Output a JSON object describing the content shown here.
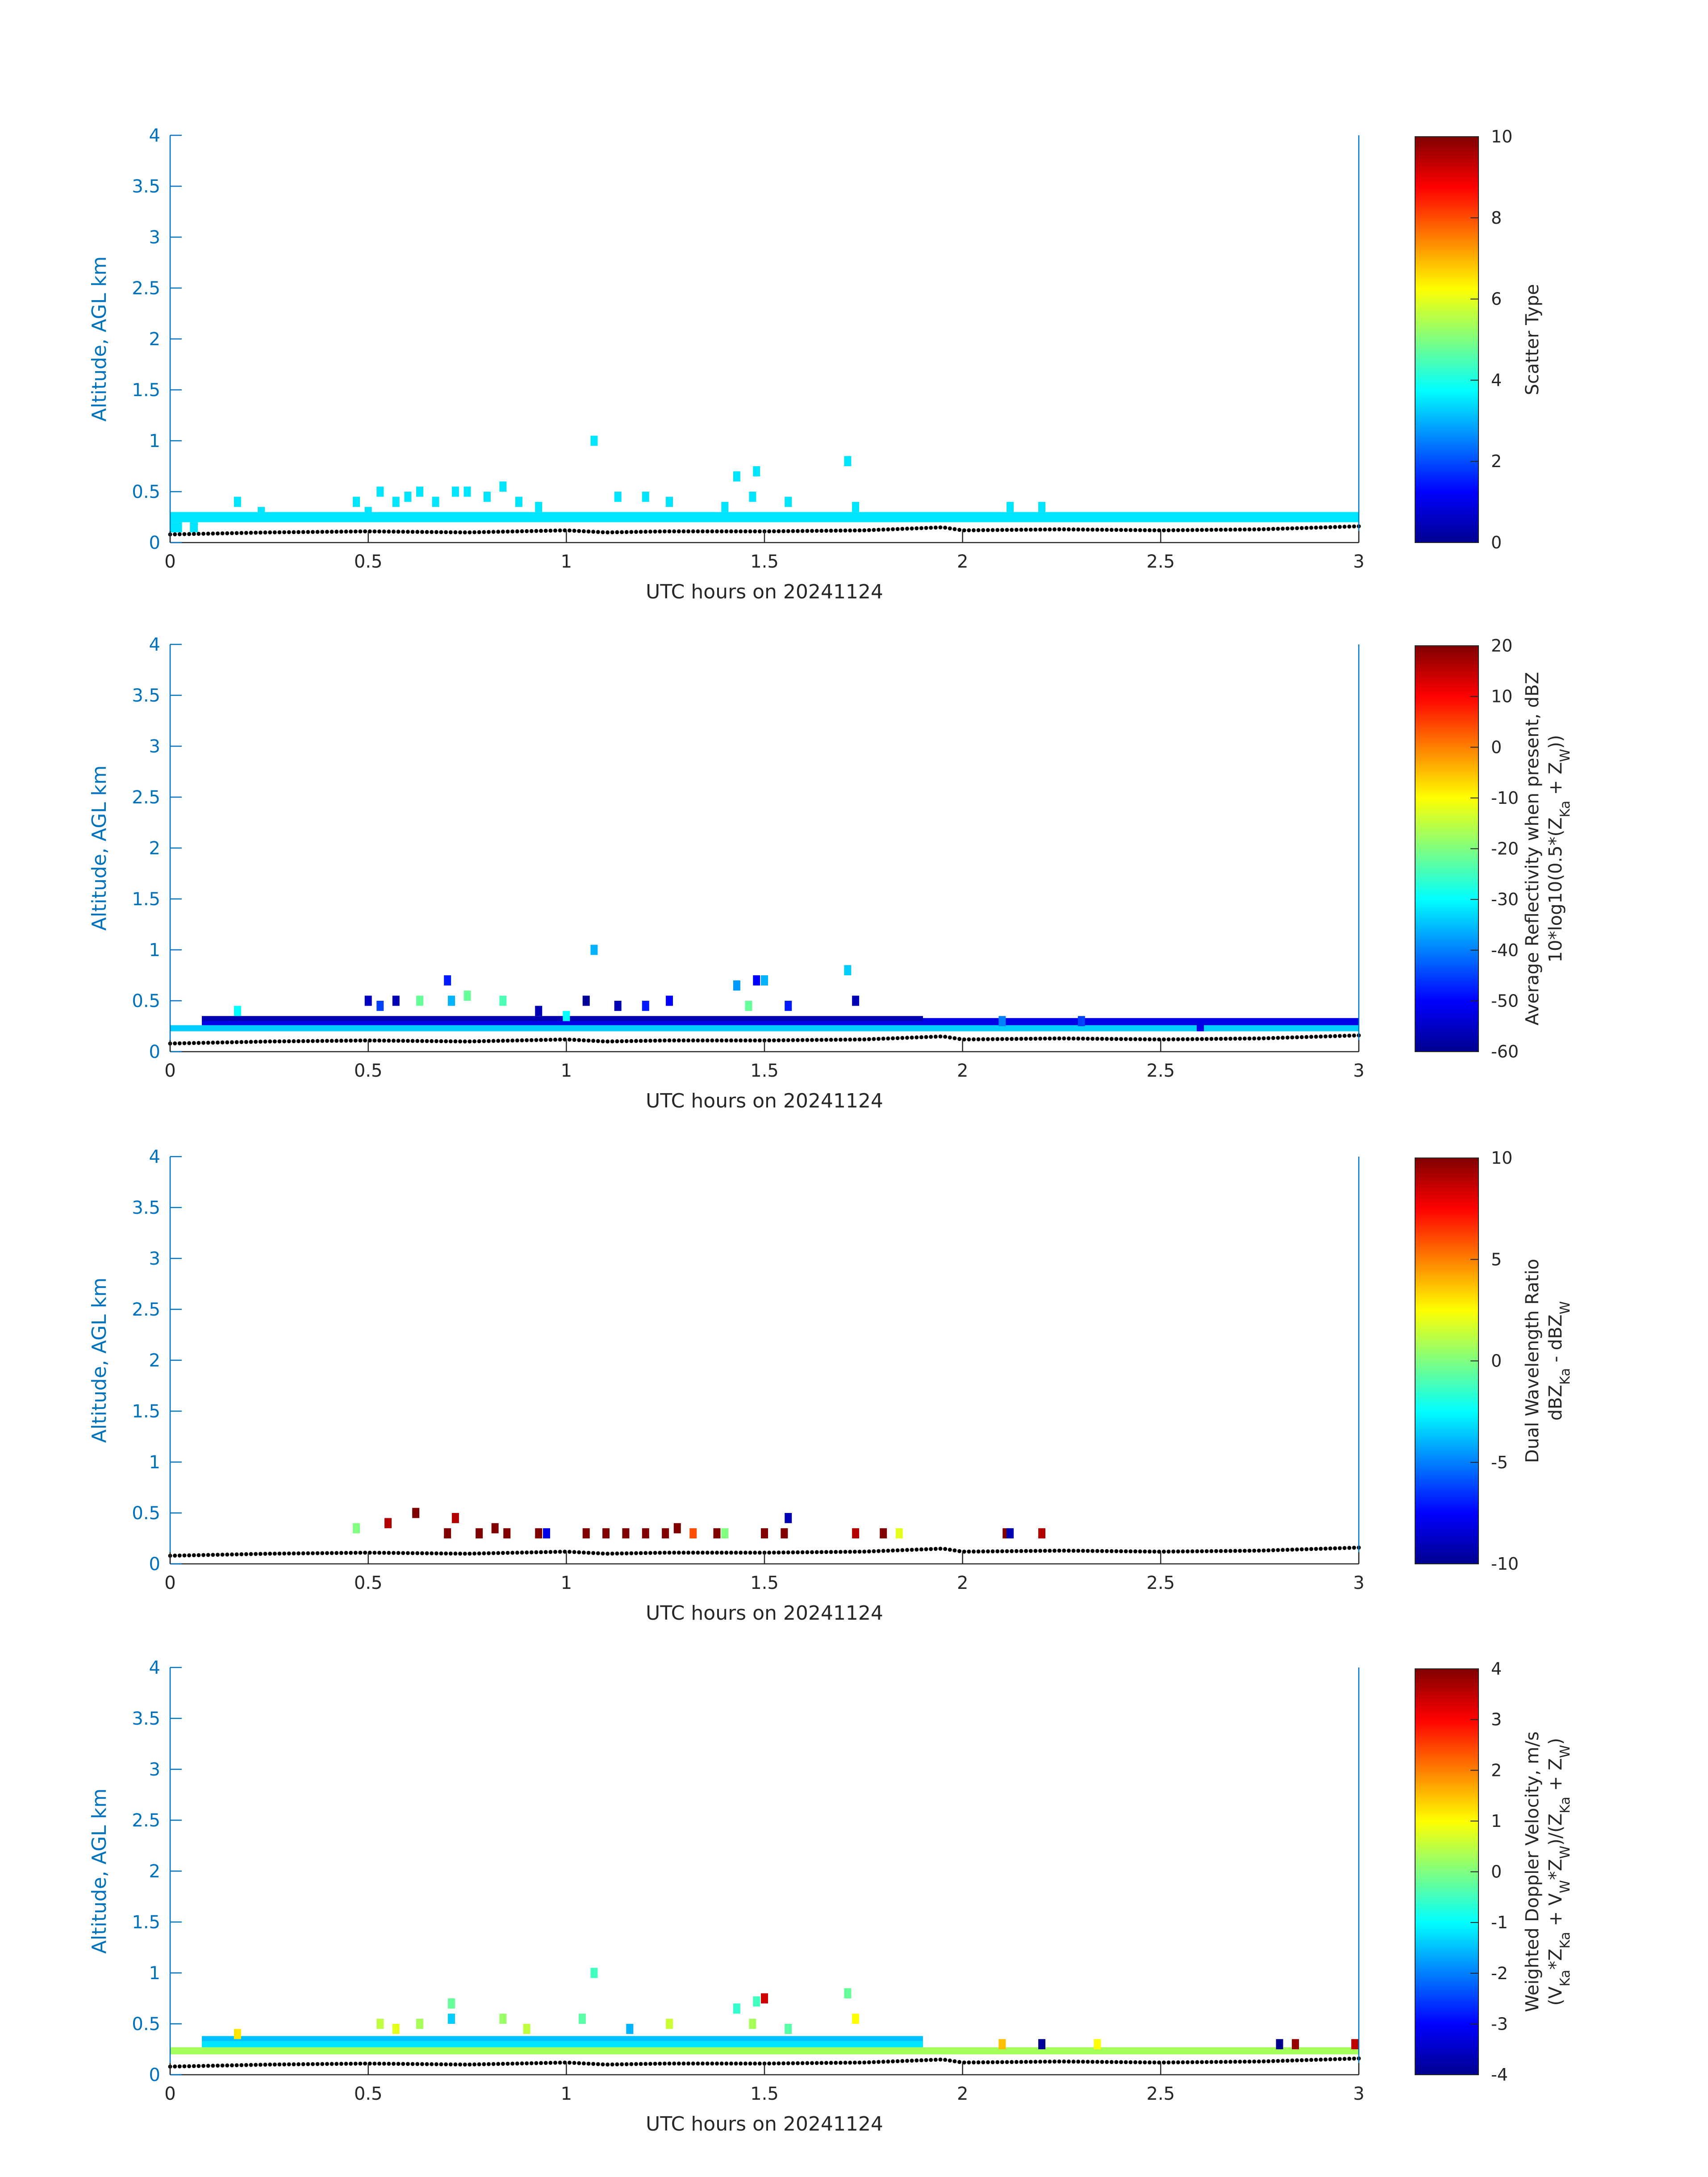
{
  "colors": {
    "axis_blue": "#0072bd",
    "frame_gray": "#262626",
    "cyan_fill": "#2ef8d2",
    "ground_dots": "#000000"
  },
  "chart_data": [
    {
      "type": "heatmap",
      "xlabel": "UTC hours on 20241124",
      "ylabel": "Altitude, AGL km",
      "xlim": [
        0,
        3
      ],
      "ylim": [
        0,
        4
      ],
      "xticks": [
        "0",
        "0.5",
        "1",
        "1.5",
        "2",
        "2.5",
        "3"
      ],
      "yticks": [
        "0",
        "0.5",
        "1",
        "1.5",
        "2",
        "2.5",
        "3",
        "3.5",
        "4"
      ],
      "colorbar": {
        "label_lines": [
          "Scatter Type"
        ],
        "clim": [
          0,
          10
        ],
        "ticks": [
          "0",
          "2",
          "4",
          "6",
          "8",
          "10"
        ]
      },
      "layers": [
        {
          "x0": 0.0,
          "x1": 3.0,
          "y0": 0.2,
          "y1": 0.3,
          "value": 3.5
        },
        {
          "x0": 0.0,
          "x1": 0.03,
          "y0": 0.1,
          "y1": 0.2,
          "value": 3.5
        },
        {
          "x0": 0.05,
          "x1": 0.07,
          "y0": 0.1,
          "y1": 0.2,
          "value": 3.5
        }
      ],
      "cells": [
        [
          0.17,
          0.4,
          3.5
        ],
        [
          0.23,
          0.3,
          3.5
        ],
        [
          0.47,
          0.4,
          3.5
        ],
        [
          0.5,
          0.3,
          3.5
        ],
        [
          0.53,
          0.5,
          3.5
        ],
        [
          0.57,
          0.4,
          3.5
        ],
        [
          0.6,
          0.45,
          3.5
        ],
        [
          0.63,
          0.5,
          3.5
        ],
        [
          0.67,
          0.4,
          3.5
        ],
        [
          0.72,
          0.5,
          3.5
        ],
        [
          0.75,
          0.5,
          3.5
        ],
        [
          0.8,
          0.45,
          3.5
        ],
        [
          0.84,
          0.55,
          3.5
        ],
        [
          0.88,
          0.4,
          3.5
        ],
        [
          0.93,
          0.35,
          3.5
        ],
        [
          1.07,
          1.0,
          3.5
        ],
        [
          1.13,
          0.45,
          3.5
        ],
        [
          1.2,
          0.45,
          3.5
        ],
        [
          1.26,
          0.4,
          3.5
        ],
        [
          1.4,
          0.35,
          3.5
        ],
        [
          1.43,
          0.65,
          3.5
        ],
        [
          1.47,
          0.45,
          3.5
        ],
        [
          1.48,
          0.7,
          3.5
        ],
        [
          1.56,
          0.4,
          3.5
        ],
        [
          1.71,
          0.8,
          3.5
        ],
        [
          1.73,
          0.35,
          3.5
        ],
        [
          2.12,
          0.35,
          3.5
        ],
        [
          2.2,
          0.35,
          3.5
        ]
      ],
      "ground": {
        "x": [
          0,
          0.25,
          0.5,
          0.75,
          1.0,
          1.1,
          1.25,
          1.5,
          1.75,
          1.95,
          2.0,
          2.25,
          2.5,
          2.75,
          3.0
        ],
        "y": [
          0.08,
          0.1,
          0.11,
          0.1,
          0.12,
          0.1,
          0.11,
          0.11,
          0.12,
          0.15,
          0.12,
          0.13,
          0.12,
          0.13,
          0.16
        ]
      }
    },
    {
      "type": "heatmap",
      "xlabel": "UTC hours on 20241124",
      "ylabel": "Altitude, AGL km",
      "xlim": [
        0,
        3
      ],
      "ylim": [
        0,
        4
      ],
      "xticks": [
        "0",
        "0.5",
        "1",
        "1.5",
        "2",
        "2.5",
        "3"
      ],
      "yticks": [
        "0",
        "0.5",
        "1",
        "1.5",
        "2",
        "2.5",
        "3",
        "3.5",
        "4"
      ],
      "colorbar": {
        "label_lines": [
          "Average Reflectivity when present, dBZ",
          "10*log10(0.5*(Z_Ka + Z_W))"
        ],
        "clim": [
          -60,
          20
        ],
        "ticks": [
          "-60",
          "-50",
          "-40",
          "-30",
          "-20",
          "-10",
          "0",
          "10",
          "20"
        ]
      },
      "layers": [
        {
          "x0": 0.0,
          "x1": 3.0,
          "y0": 0.2,
          "y1": 0.26,
          "value": -34
        },
        {
          "x0": 0.08,
          "x1": 3.0,
          "y0": 0.26,
          "y1": 0.33,
          "value": -52
        },
        {
          "x0": 0.08,
          "x1": 1.9,
          "y0": 0.3,
          "y1": 0.35,
          "value": -56
        }
      ],
      "cells": [
        [
          0.17,
          0.4,
          -30
        ],
        [
          0.5,
          0.5,
          -55
        ],
        [
          0.53,
          0.45,
          -45
        ],
        [
          0.57,
          0.5,
          -56
        ],
        [
          0.63,
          0.5,
          -22
        ],
        [
          0.7,
          0.7,
          -48
        ],
        [
          0.71,
          0.5,
          -36
        ],
        [
          0.75,
          0.55,
          -22
        ],
        [
          0.84,
          0.5,
          -24
        ],
        [
          0.93,
          0.4,
          -56
        ],
        [
          1.0,
          0.35,
          -30
        ],
        [
          1.05,
          0.5,
          -58
        ],
        [
          1.07,
          1.0,
          -36
        ],
        [
          1.13,
          0.45,
          -56
        ],
        [
          1.2,
          0.45,
          -48
        ],
        [
          1.26,
          0.5,
          -50
        ],
        [
          1.43,
          0.65,
          -38
        ],
        [
          1.46,
          0.45,
          -22
        ],
        [
          1.48,
          0.7,
          -50
        ],
        [
          1.5,
          0.7,
          -36
        ],
        [
          1.56,
          0.45,
          -48
        ],
        [
          1.71,
          0.8,
          -34
        ],
        [
          1.73,
          0.5,
          -56
        ],
        [
          2.1,
          0.3,
          -40
        ],
        [
          2.3,
          0.3,
          -45
        ],
        [
          2.6,
          0.25,
          -52
        ]
      ],
      "ground": {
        "x": [
          0,
          0.25,
          0.5,
          0.75,
          1.0,
          1.1,
          1.25,
          1.5,
          1.75,
          1.95,
          2.0,
          2.25,
          2.5,
          2.75,
          3.0
        ],
        "y": [
          0.08,
          0.1,
          0.11,
          0.1,
          0.12,
          0.1,
          0.11,
          0.11,
          0.12,
          0.15,
          0.12,
          0.13,
          0.12,
          0.13,
          0.16
        ]
      }
    },
    {
      "type": "heatmap",
      "xlabel": "UTC hours on 20241124",
      "ylabel": "Altitude, AGL km",
      "xlim": [
        0,
        3
      ],
      "ylim": [
        0,
        4
      ],
      "xticks": [
        "0",
        "0.5",
        "1",
        "1.5",
        "2",
        "2.5",
        "3"
      ],
      "yticks": [
        "0",
        "0.5",
        "1",
        "1.5",
        "2",
        "2.5",
        "3",
        "3.5",
        "4"
      ],
      "colorbar": {
        "label_lines": [
          "Dual Wavelength Ratio",
          "dBZ_Ka - dBZ_W"
        ],
        "clim": [
          -10,
          10
        ],
        "ticks": [
          "-10",
          "-5",
          "0",
          "5",
          "10"
        ]
      },
      "layers": [],
      "cells": [
        [
          0.47,
          0.35,
          0
        ],
        [
          0.55,
          0.4,
          9
        ],
        [
          0.62,
          0.5,
          10
        ],
        [
          0.72,
          0.45,
          9
        ],
        [
          0.7,
          0.3,
          10
        ],
        [
          0.78,
          0.3,
          10
        ],
        [
          0.82,
          0.35,
          10
        ],
        [
          0.85,
          0.3,
          10
        ],
        [
          0.93,
          0.3,
          10
        ],
        [
          0.95,
          0.3,
          -8
        ],
        [
          1.05,
          0.3,
          10
        ],
        [
          1.1,
          0.3,
          10
        ],
        [
          1.15,
          0.3,
          10
        ],
        [
          1.2,
          0.3,
          10
        ],
        [
          1.25,
          0.3,
          10
        ],
        [
          1.28,
          0.35,
          10
        ],
        [
          1.32,
          0.3,
          6
        ],
        [
          1.38,
          0.3,
          10
        ],
        [
          1.4,
          0.3,
          0
        ],
        [
          1.5,
          0.3,
          10
        ],
        [
          1.55,
          0.3,
          10
        ],
        [
          1.56,
          0.45,
          -9
        ],
        [
          1.73,
          0.3,
          9
        ],
        [
          1.8,
          0.3,
          10
        ],
        [
          1.84,
          0.3,
          2
        ],
        [
          2.11,
          0.3,
          10
        ],
        [
          2.12,
          0.3,
          -9
        ],
        [
          2.2,
          0.3,
          9
        ]
      ],
      "ground": {
        "x": [
          0,
          0.25,
          0.5,
          0.75,
          1.0,
          1.1,
          1.25,
          1.5,
          1.75,
          1.95,
          2.0,
          2.25,
          2.5,
          2.75,
          3.0
        ],
        "y": [
          0.08,
          0.1,
          0.11,
          0.1,
          0.12,
          0.1,
          0.11,
          0.11,
          0.12,
          0.15,
          0.12,
          0.13,
          0.12,
          0.13,
          0.16
        ]
      }
    },
    {
      "type": "heatmap",
      "xlabel": "UTC hours on 20241124",
      "ylabel": "Altitude, AGL km",
      "xlim": [
        0,
        3
      ],
      "ylim": [
        0,
        4
      ],
      "xticks": [
        "0",
        "0.5",
        "1",
        "1.5",
        "2",
        "2.5",
        "3"
      ],
      "yticks": [
        "0",
        "0.5",
        "1",
        "1.5",
        "2",
        "2.5",
        "3",
        "3.5",
        "4"
      ],
      "colorbar": {
        "label_lines": [
          "Weighted Doppler Velocity, m/s",
          "(V_Ka*Z_Ka + V_W*Z_W)/(Z_Ka + Z_W)"
        ],
        "clim": [
          -4,
          4
        ],
        "ticks": [
          "-4",
          "-3",
          "-2",
          "-1",
          "0",
          "1",
          "2",
          "3",
          "4"
        ]
      },
      "layers": [
        {
          "x0": 0.0,
          "x1": 3.0,
          "y0": 0.2,
          "y1": 0.27,
          "value": 0.3
        },
        {
          "x0": 0.08,
          "x1": 1.9,
          "y0": 0.27,
          "y1": 0.33,
          "value": -1.2
        },
        {
          "x0": 0.08,
          "x1": 1.9,
          "y0": 0.33,
          "y1": 0.38,
          "value": -1.5
        }
      ],
      "cells": [
        [
          0.17,
          0.4,
          1.2
        ],
        [
          0.53,
          0.5,
          0.5
        ],
        [
          0.57,
          0.45,
          0.8
        ],
        [
          0.63,
          0.5,
          0.3
        ],
        [
          0.71,
          0.55,
          -1.4
        ],
        [
          0.71,
          0.7,
          -0.2
        ],
        [
          0.84,
          0.55,
          0.2
        ],
        [
          0.9,
          0.45,
          0.5
        ],
        [
          1.04,
          0.55,
          -0.3
        ],
        [
          1.07,
          1.0,
          -0.5
        ],
        [
          1.16,
          0.45,
          -1.6
        ],
        [
          1.26,
          0.5,
          0.6
        ],
        [
          1.43,
          0.65,
          -0.6
        ],
        [
          1.47,
          0.5,
          0.3
        ],
        [
          1.48,
          0.72,
          -0.5
        ],
        [
          1.5,
          0.75,
          3.4
        ],
        [
          1.56,
          0.45,
          -0.3
        ],
        [
          1.71,
          0.8,
          -0.2
        ],
        [
          1.73,
          0.55,
          1.0
        ],
        [
          2.1,
          0.3,
          1.5
        ],
        [
          2.2,
          0.3,
          -3.8
        ],
        [
          2.34,
          0.3,
          1.0
        ],
        [
          2.8,
          0.3,
          -3.9
        ],
        [
          2.84,
          0.3,
          3.8
        ],
        [
          2.99,
          0.3,
          3.5
        ]
      ],
      "ground": {
        "x": [
          0,
          0.25,
          0.5,
          0.75,
          1.0,
          1.1,
          1.25,
          1.5,
          1.75,
          1.95,
          2.0,
          2.25,
          2.5,
          2.75,
          3.0
        ],
        "y": [
          0.08,
          0.1,
          0.11,
          0.1,
          0.12,
          0.1,
          0.11,
          0.11,
          0.12,
          0.15,
          0.12,
          0.13,
          0.12,
          0.13,
          0.16
        ]
      }
    }
  ]
}
